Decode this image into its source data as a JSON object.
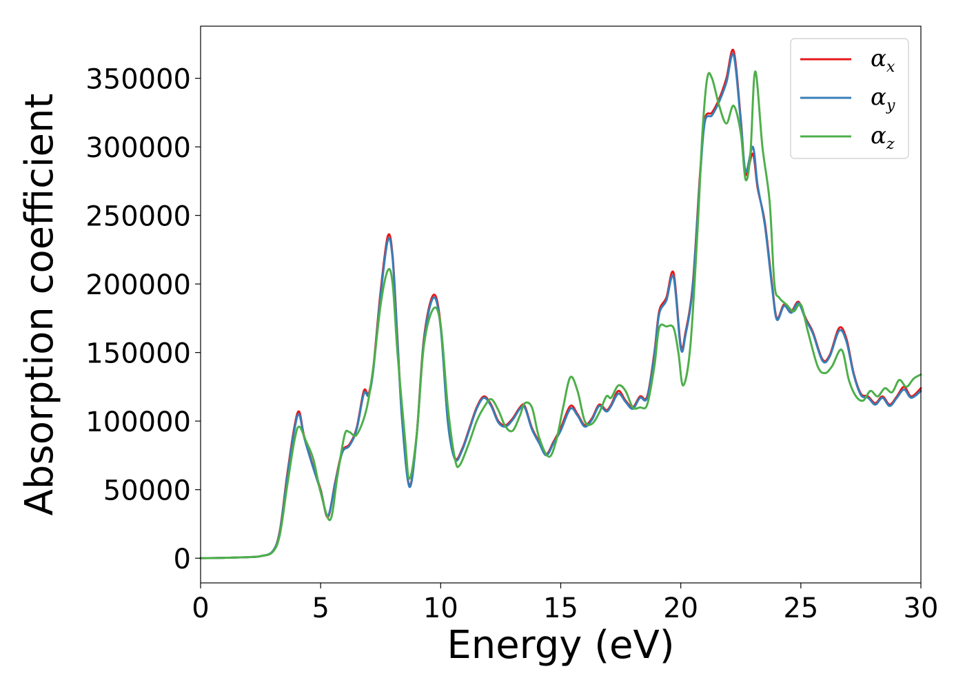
{
  "chart_data": {
    "type": "line",
    "xlabel": "Energy (eV)",
    "ylabel": "Absorption coefficient",
    "xlim": [
      0,
      30
    ],
    "ylim": [
      -18000,
      388000
    ],
    "xticks": [
      0,
      5,
      10,
      15,
      20,
      25,
      30
    ],
    "yticks": [
      0,
      50000,
      100000,
      150000,
      200000,
      250000,
      300000,
      350000
    ],
    "grid": false,
    "legend_position": "top-right",
    "series": [
      {
        "name": "α",
        "subscript": "x",
        "color": "#e41a1c",
        "x": [
          0,
          1,
          2,
          2.5,
          3,
          3.3,
          3.6,
          3.9,
          4.1,
          4.3,
          4.6,
          5.0,
          5.3,
          5.6,
          5.9,
          6.2,
          6.5,
          6.8,
          7.0,
          7.2,
          7.5,
          7.8,
          8.0,
          8.2,
          8.4,
          8.7,
          9.0,
          9.3,
          9.7,
          10.0,
          10.3,
          10.6,
          10.9,
          11.2,
          11.5,
          11.8,
          12.1,
          12.4,
          12.7,
          13.0,
          13.3,
          13.5,
          13.8,
          14.1,
          14.4,
          14.7,
          15.0,
          15.4,
          15.7,
          16.0,
          16.3,
          16.6,
          16.9,
          17.1,
          17.4,
          17.7,
          18.0,
          18.3,
          18.6,
          18.9,
          19.1,
          19.4,
          19.7,
          20.0,
          20.2,
          20.5,
          20.8,
          21.0,
          21.3,
          21.6,
          21.9,
          22.2,
          22.5,
          22.7,
          23.0,
          23.2,
          23.5,
          23.8,
          24.0,
          24.3,
          24.6,
          24.9,
          25.2,
          25.5,
          25.9,
          26.2,
          26.6,
          26.9,
          27.2,
          27.5,
          27.8,
          28.1,
          28.4,
          28.7,
          29.0,
          29.3,
          29.6,
          30.0
        ],
        "y": [
          0,
          300,
          800,
          1500,
          5000,
          20000,
          60000,
          95000,
          107000,
          90000,
          72000,
          50000,
          30000,
          55000,
          78000,
          83000,
          95000,
          122000,
          120000,
          140000,
          195000,
          235000,
          220000,
          160000,
          100000,
          53000,
          90000,
          160000,
          192000,
          170000,
          100000,
          73000,
          80000,
          95000,
          110000,
          118000,
          112000,
          100000,
          97000,
          102000,
          110000,
          111000,
          95000,
          85000,
          76000,
          85000,
          95000,
          111000,
          105000,
          97000,
          102000,
          112000,
          108000,
          112000,
          122000,
          115000,
          110000,
          118000,
          118000,
          150000,
          180000,
          190000,
          208000,
          155000,
          165000,
          200000,
          280000,
          320000,
          325000,
          335000,
          350000,
          370000,
          320000,
          280000,
          295000,
          270000,
          245000,
          200000,
          175000,
          185000,
          180000,
          187000,
          175000,
          165000,
          145000,
          148000,
          168000,
          160000,
          135000,
          120000,
          118000,
          113000,
          118000,
          112000,
          118000,
          125000,
          118000,
          124000
        ]
      },
      {
        "name": "α",
        "subscript": "y",
        "color": "#377eb8",
        "x": [
          0,
          1,
          2,
          2.5,
          3,
          3.3,
          3.6,
          3.9,
          4.1,
          4.3,
          4.6,
          5.0,
          5.3,
          5.6,
          5.9,
          6.2,
          6.5,
          6.8,
          7.0,
          7.2,
          7.5,
          7.8,
          8.0,
          8.2,
          8.4,
          8.7,
          9.0,
          9.3,
          9.7,
          10.0,
          10.3,
          10.6,
          10.9,
          11.2,
          11.5,
          11.8,
          12.1,
          12.4,
          12.7,
          13.0,
          13.3,
          13.5,
          13.8,
          14.1,
          14.4,
          14.7,
          15.0,
          15.4,
          15.7,
          16.0,
          16.3,
          16.6,
          16.9,
          17.1,
          17.4,
          17.7,
          18.0,
          18.3,
          18.6,
          18.9,
          19.1,
          19.4,
          19.7,
          20.0,
          20.2,
          20.5,
          20.8,
          21.0,
          21.3,
          21.6,
          21.9,
          22.2,
          22.5,
          22.7,
          23.0,
          23.2,
          23.5,
          23.8,
          24.0,
          24.3,
          24.6,
          24.9,
          25.2,
          25.5,
          25.9,
          26.2,
          26.6,
          26.9,
          27.2,
          27.5,
          27.8,
          28.1,
          28.4,
          28.7,
          29.0,
          29.3,
          29.6,
          30.0
        ],
        "y": [
          0,
          300,
          800,
          1500,
          5000,
          19000,
          58000,
          93000,
          105000,
          89000,
          71000,
          49000,
          31000,
          54000,
          77000,
          82000,
          94000,
          120000,
          119000,
          138000,
          192000,
          232000,
          218000,
          158000,
          99000,
          52000,
          89000,
          158000,
          190000,
          168000,
          99000,
          72000,
          79000,
          94000,
          109000,
          117000,
          111000,
          99000,
          96000,
          101000,
          109000,
          110000,
          94000,
          84000,
          75000,
          84000,
          93000,
          109000,
          104000,
          96000,
          101000,
          111000,
          107000,
          111000,
          120000,
          114000,
          109000,
          117000,
          117000,
          148000,
          178000,
          188000,
          205000,
          153000,
          163000,
          198000,
          277000,
          318000,
          323000,
          333000,
          347000,
          367000,
          318000,
          282000,
          300000,
          272000,
          243000,
          198000,
          174000,
          184000,
          179000,
          186000,
          174000,
          164000,
          144000,
          147000,
          166000,
          158000,
          134000,
          119000,
          117000,
          112000,
          117000,
          111000,
          117000,
          123000,
          117000,
          122000
        ]
      },
      {
        "name": "α",
        "subscript": "z",
        "color": "#4daf4a",
        "x": [
          0,
          1,
          2,
          2.5,
          3,
          3.3,
          3.6,
          3.9,
          4.1,
          4.4,
          4.7,
          5.0,
          5.4,
          5.7,
          6.0,
          6.2,
          6.5,
          6.9,
          7.2,
          7.5,
          7.8,
          8.0,
          8.2,
          8.5,
          8.7,
          9.0,
          9.3,
          9.7,
          10.0,
          10.3,
          10.6,
          10.8,
          11.2,
          11.5,
          11.8,
          12.1,
          12.4,
          12.7,
          13.0,
          13.3,
          13.5,
          13.8,
          14.1,
          14.5,
          14.8,
          15.1,
          15.4,
          15.7,
          16.0,
          16.3,
          16.6,
          16.9,
          17.1,
          17.4,
          17.7,
          18.0,
          18.3,
          18.6,
          18.9,
          19.1,
          19.4,
          19.7,
          19.9,
          20.1,
          20.4,
          20.7,
          20.9,
          21.1,
          21.3,
          21.6,
          21.9,
          22.2,
          22.5,
          22.7,
          22.9,
          23.1,
          23.4,
          23.7,
          23.9,
          24.1,
          24.4,
          24.7,
          25.0,
          25.3,
          25.7,
          26.0,
          26.3,
          26.7,
          27.0,
          27.3,
          27.6,
          27.9,
          28.2,
          28.5,
          28.8,
          29.1,
          29.4,
          29.7,
          30.0
        ],
        "y": [
          0,
          300,
          800,
          1500,
          4500,
          17000,
          52000,
          85000,
          96000,
          85000,
          72000,
          48000,
          28000,
          60000,
          90000,
          92000,
          90000,
          108000,
          140000,
          185000,
          210000,
          200000,
          150000,
          90000,
          58000,
          90000,
          155000,
          182000,
          170000,
          110000,
          72000,
          68000,
          85000,
          100000,
          110000,
          116000,
          108000,
          96000,
          93000,
          104000,
          113000,
          110000,
          88000,
          74000,
          85000,
          110000,
          132000,
          122000,
          100000,
          98000,
          106000,
          118000,
          117000,
          126000,
          122000,
          110000,
          110000,
          112000,
          140000,
          168000,
          169000,
          168000,
          150000,
          126000,
          155000,
          240000,
          310000,
          350000,
          350000,
          330000,
          317000,
          330000,
          310000,
          276000,
          295000,
          355000,
          300000,
          260000,
          200000,
          190000,
          185000,
          180000,
          185000,
          165000,
          140000,
          135000,
          140000,
          152000,
          130000,
          118000,
          115000,
          122000,
          118000,
          124000,
          121000,
          130000,
          125000,
          131000,
          134000
        ]
      }
    ]
  }
}
